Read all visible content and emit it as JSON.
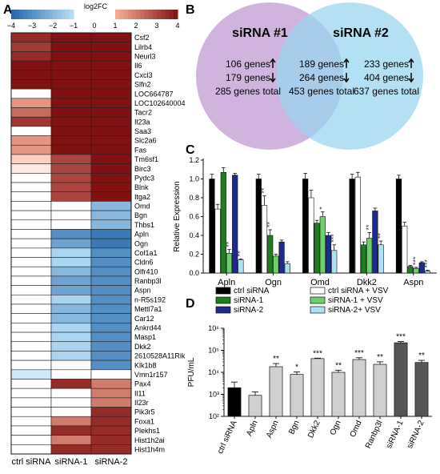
{
  "panels": {
    "a": "A",
    "b": "B",
    "c": "C",
    "d": "D"
  },
  "chart_data": [
    {
      "type": "heatmap",
      "legend_title": "log2FC",
      "scale_ticks": [
        "−4",
        "−3",
        "−2",
        "−1",
        "0",
        "1",
        "2",
        "3",
        "4"
      ],
      "columns": [
        "ctrl siRNA",
        "siRNA-1",
        "siRNA-2"
      ],
      "rows": [
        {
          "gene": "Csf2",
          "values": [
            3.5,
            4,
            4
          ]
        },
        {
          "gene": "Lilrb4",
          "values": [
            3.2,
            4,
            4
          ]
        },
        {
          "gene": "Neurl3",
          "values": [
            3.5,
            4,
            4
          ]
        },
        {
          "gene": "Il6",
          "values": [
            4,
            4,
            4
          ]
        },
        {
          "gene": "Cxcl3",
          "values": [
            4,
            4,
            4
          ]
        },
        {
          "gene": "Slfn2",
          "values": [
            4,
            4,
            4
          ]
        },
        {
          "gene": "LOC664787",
          "values": [
            0,
            4,
            4
          ]
        },
        {
          "gene": "LOC102640004",
          "values": [
            1.5,
            4,
            4
          ]
        },
        {
          "gene": "Tacr2",
          "values": [
            2.3,
            4,
            4
          ]
        },
        {
          "gene": "Il23a",
          "values": [
            3.3,
            4,
            4
          ]
        },
        {
          "gene": "Saa3",
          "values": [
            0,
            4,
            4
          ]
        },
        {
          "gene": "Slc2a6",
          "values": [
            1.5,
            4,
            4
          ]
        },
        {
          "gene": "Fas",
          "values": [
            1.5,
            4,
            4
          ]
        },
        {
          "gene": "Tm6sf1",
          "values": [
            0.6,
            3,
            4
          ]
        },
        {
          "gene": "Birc3",
          "values": [
            0.3,
            3,
            4
          ]
        },
        {
          "gene": "Pydc3",
          "values": [
            0,
            3,
            4
          ]
        },
        {
          "gene": "Blnk",
          "values": [
            0,
            3,
            4
          ]
        },
        {
          "gene": "Itga2",
          "values": [
            0,
            3,
            4
          ]
        },
        {
          "gene": "Omd",
          "values": [
            0,
            0,
            -2
          ]
        },
        {
          "gene": "Bgn",
          "values": [
            0,
            0,
            -2
          ]
        },
        {
          "gene": "Thbs1",
          "values": [
            0,
            0,
            -2
          ]
        },
        {
          "gene": "Apln",
          "values": [
            0,
            -3,
            -3.5
          ]
        },
        {
          "gene": "Ogn",
          "values": [
            0,
            -2.5,
            -3.5
          ]
        },
        {
          "gene": "Col1a1",
          "values": [
            0,
            -1.3,
            -3
          ]
        },
        {
          "gene": "Cldn6",
          "values": [
            0,
            -1.3,
            -3
          ]
        },
        {
          "gene": "Olfr410",
          "values": [
            0,
            -2,
            -3
          ]
        },
        {
          "gene": "Ranbp3l",
          "values": [
            0,
            -2.5,
            -3
          ]
        },
        {
          "gene": "Aspn",
          "values": [
            0,
            -2.5,
            -3
          ]
        },
        {
          "gene": "n-R5s192",
          "values": [
            0,
            -1.3,
            -3
          ]
        },
        {
          "gene": "Mettl7a1",
          "values": [
            0,
            -2,
            -3
          ]
        },
        {
          "gene": "Car12",
          "values": [
            0,
            -2,
            -3
          ]
        },
        {
          "gene": "Ankrd44",
          "values": [
            0,
            -1.3,
            -3
          ]
        },
        {
          "gene": "Masp1",
          "values": [
            0,
            -1.3,
            -3
          ]
        },
        {
          "gene": "Dkk2",
          "values": [
            0,
            -1.3,
            -3
          ]
        },
        {
          "gene": "2610528A11Rik",
          "values": [
            0,
            -1.3,
            -3
          ]
        },
        {
          "gene": "Klk1b8",
          "values": [
            0,
            0,
            -3
          ]
        },
        {
          "gene": "Vmn1r157",
          "values": [
            -0.7,
            0,
            0
          ]
        },
        {
          "gene": "Pax4",
          "values": [
            0,
            3.5,
            2
          ]
        },
        {
          "gene": "Il11",
          "values": [
            0,
            0,
            2
          ]
        },
        {
          "gene": "Il23r",
          "values": [
            0,
            0,
            2
          ]
        },
        {
          "gene": "Pik3r5",
          "values": [
            0,
            0,
            3.5
          ]
        },
        {
          "gene": "Foxa1",
          "values": [
            0,
            2,
            3.5
          ]
        },
        {
          "gene": "Plekhs1",
          "values": [
            0,
            3.5,
            3.5
          ]
        },
        {
          "gene": "Hist1h2ai",
          "values": [
            0,
            2,
            3.5
          ]
        },
        {
          "gene": "Hist1h4m",
          "values": [
            0,
            3.5,
            3.5
          ]
        }
      ]
    },
    {
      "type": "venn",
      "sets": [
        "siRNA #1",
        "siRNA #2"
      ],
      "left": [
        "106 genes",
        "179 genes",
        "285 genes total"
      ],
      "overlap": [
        "189 genes",
        "264 genes",
        "453 genes total"
      ],
      "right": [
        "233 genes",
        "404 genes",
        "637 genes total"
      ],
      "colors": {
        "left": "#c9a7d8",
        "right": "#9ad6ef"
      }
    },
    {
      "type": "bar",
      "ylabel": "Relative Expression",
      "ylim": [
        0.0,
        1.2
      ],
      "yticks": [
        "0.0",
        "0.2",
        "0.4",
        "0.6",
        "0.8",
        "1.0",
        "1.2"
      ],
      "categories": [
        "Apln",
        "Ogn",
        "Omd",
        "Dkk2",
        "Aspn"
      ],
      "series": [
        {
          "name": "ctrl siRNA",
          "color": "#000000",
          "values": [
            1.0,
            1.0,
            1.0,
            1.0,
            1.0
          ],
          "err": [
            0.05,
            0.05,
            0.06,
            0.05,
            0.04
          ]
        },
        {
          "name": "ctrl siRNA + VSV",
          "color": "#ffffff",
          "values": [
            0.68,
            0.72,
            0.8,
            1.02,
            0.5
          ],
          "err": [
            0.05,
            0.1,
            0.08,
            0.05,
            0.04
          ]
        },
        {
          "name": "siRNA-1",
          "color": "#1e7d1e",
          "values": [
            1.07,
            0.4,
            0.53,
            0.3,
            0.07
          ],
          "err": [
            0.05,
            0.06,
            0.03,
            0.03,
            0.01
          ]
        },
        {
          "name": "siRNA-1 + VSV",
          "color": "#6cd06c",
          "values": [
            0.21,
            0.18,
            0.6,
            0.37,
            0.05
          ],
          "err": [
            0.04,
            0.02,
            0.05,
            0.06,
            0.01
          ]
        },
        {
          "name": "siRNA-2",
          "color": "#1c2c8c",
          "values": [
            1.04,
            0.33,
            0.4,
            0.66,
            0.11
          ],
          "err": [
            0.02,
            0.02,
            0.03,
            0.03,
            0.01
          ]
        },
        {
          "name": "siRNA-2+ VSV",
          "color": "#aee0f4",
          "values": [
            0.14,
            0.1,
            0.24,
            0.3,
            0.02
          ],
          "err": [
            0.01,
            0.02,
            0.06,
            0.04,
            0.01
          ]
        }
      ],
      "annotations": [
        {
          "cat": 1,
          "series": 2,
          "text": "**"
        },
        {
          "cat": 0,
          "series": 3,
          "text": "**"
        },
        {
          "cat": 0,
          "series": 5,
          "text": "**"
        },
        {
          "cat": 1,
          "series": 1,
          "text": "**"
        },
        {
          "cat": 2,
          "series": 3,
          "text": "*"
        },
        {
          "cat": 2,
          "series": 5,
          "text": "***"
        },
        {
          "cat": 3,
          "series": 3,
          "text": "**"
        },
        {
          "cat": 3,
          "series": 5,
          "text": "**"
        },
        {
          "cat": 4,
          "series": 3,
          "text": "***"
        },
        {
          "cat": 4,
          "series": 5,
          "text": "***"
        }
      ]
    },
    {
      "type": "bar",
      "ylabel": "PFU/mL",
      "yscale": "log",
      "ylim": [
        100,
        1000000
      ],
      "yticks": [
        "10²",
        "10³",
        "10⁴",
        "10⁵",
        "10⁶"
      ],
      "categories": [
        "ctrl siRNA",
        "Apln",
        "Aspn",
        "Bgn",
        "Dkk2",
        "Ogn",
        "Omd",
        "Ranbp3l",
        "siRNA-1",
        "siRNA-2"
      ],
      "values": [
        2000,
        900,
        18000,
        8000,
        42000,
        10000,
        38000,
        23000,
        220000,
        28000
      ],
      "err_hi": [
        3600,
        1300,
        25000,
        10500,
        44000,
        12500,
        46000,
        30000,
        250000,
        35000
      ],
      "colors": [
        "#000000",
        "#d0d0d0",
        "#d0d0d0",
        "#d0d0d0",
        "#d0d0d0",
        "#d0d0d0",
        "#d0d0d0",
        "#d0d0d0",
        "#555555",
        "#555555"
      ],
      "significance": [
        "",
        "",
        "**",
        "*",
        "***",
        "**",
        "***",
        "**",
        "***",
        "**"
      ]
    }
  ]
}
